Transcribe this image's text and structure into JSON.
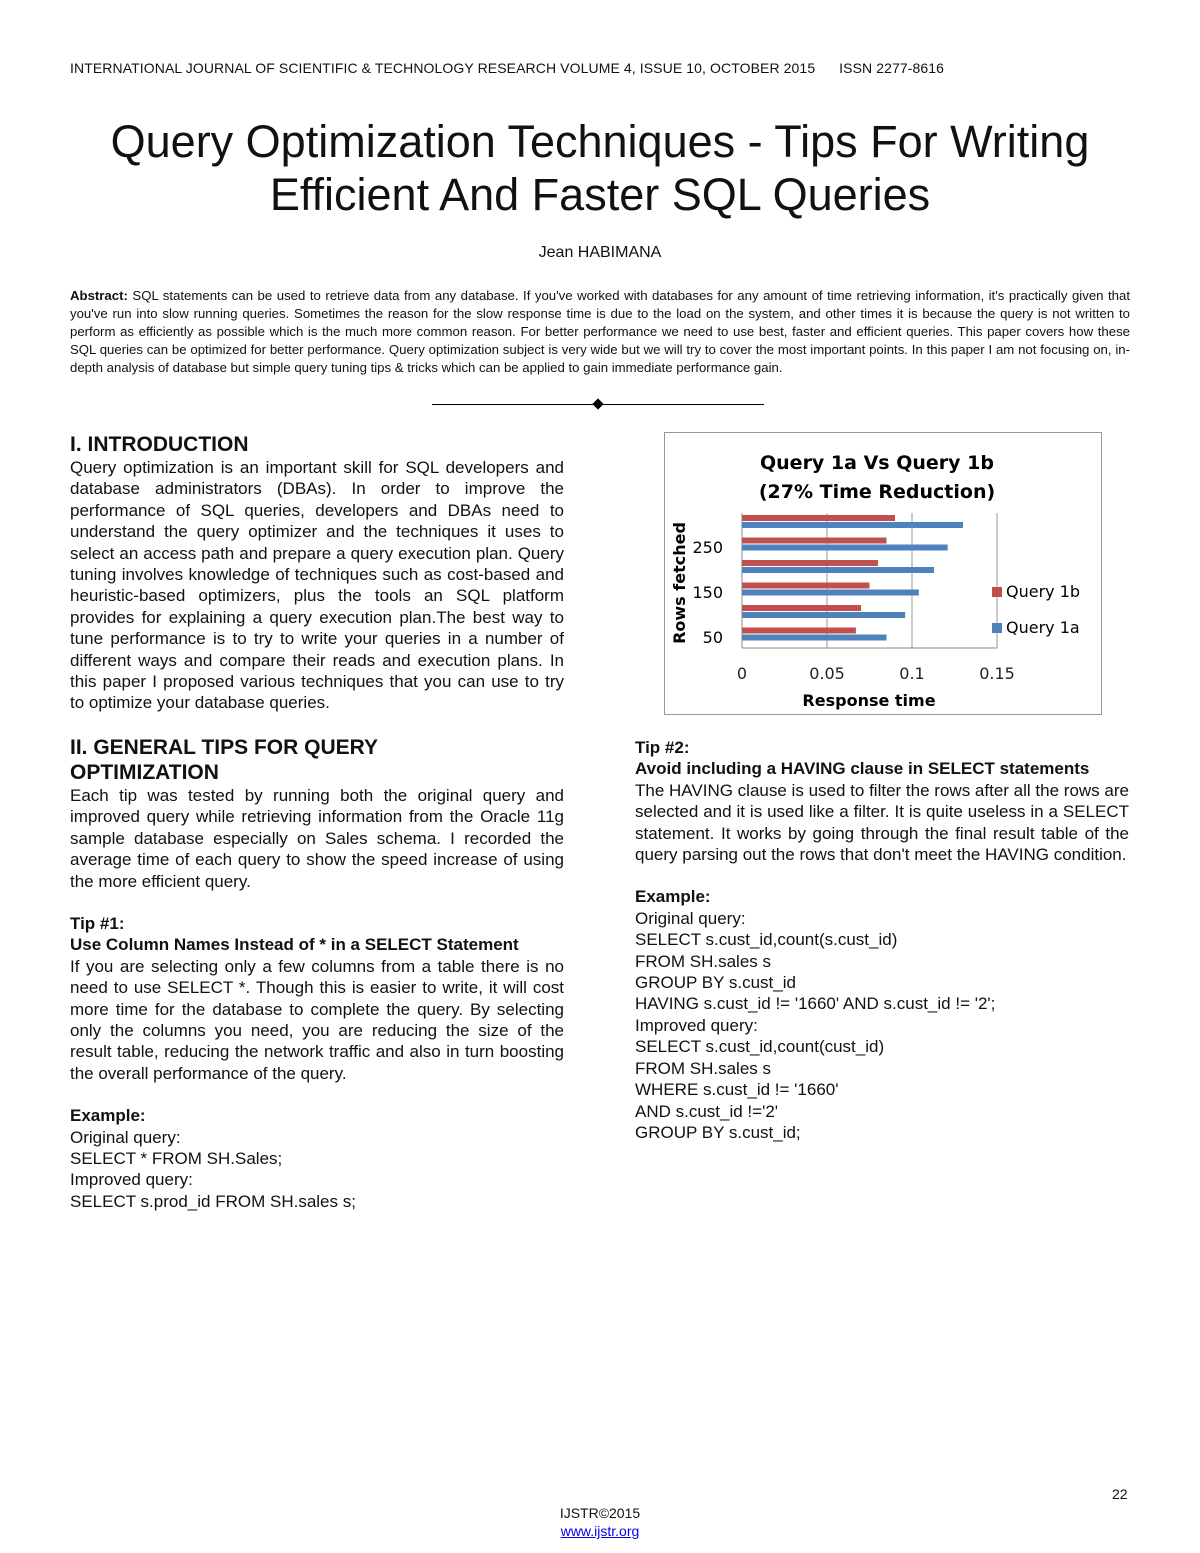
{
  "header": "INTERNATIONAL JOURNAL OF SCIENTIFIC & TECHNOLOGY RESEARCH VOLUME 4, ISSUE 10, OCTOBER 2015      ISSN 2277-8616",
  "title_line1": "Query Optimization Techniques - Tips For Writing",
  "title_line2": "Efficient And Faster SQL Queries",
  "author": "Jean HABIMANA",
  "abstract_label": "Abstract:",
  "abstract_text": " SQL statements can be used to retrieve data from any database. If you've worked with databases for any amount of time retrieving information, it's practically given that you've run into slow running queries. Sometimes the reason for the slow response time is due to the load on the system, and other times it is because the query is not written to perform as efficiently as possible which is the much more common reason. For better performance we need to use best, faster and efficient queries. This paper covers how these SQL queries can be optimized for better performance. Query optimization subject is very wide but we will try to cover the most important points. In this paper I am not focusing on, in- depth analysis of database but simple query tuning tips & tricks which can be applied to gain immediate performance gain.",
  "sec1_title": "I.  INTRODUCTION",
  "sec1_text": "Query optimization is an important skill for SQL developers and database administrators (DBAs). In order to improve the performance of SQL queries, developers and DBAs need to understand the query optimizer and the techniques it uses to select an access path and prepare a query execution plan. Query tuning involves knowledge of techniques such as cost-based and heuristic-based optimizers, plus the tools an SQL platform provides for explaining a query execution plan.The best way to tune performance is to try to write your queries in a number of different ways and compare their reads and execution plans. In this paper I proposed various techniques that you can use to try to optimize your database queries.",
  "sec2_title": "II.  GENERAL TIPS FOR QUERY OPTIMIZATION",
  "sec2_text": "Each tip was tested by running both the original query and improved query while retrieving information from the Oracle 11g sample database especially on Sales schema. I recorded the average time of each query to show the speed increase of using the more efficient query.",
  "tip1_label": "Tip #1:",
  "tip1_title": "Use Column Names Instead of * in a SELECT Statement",
  "tip1_text": "If you are selecting only a few columns from a table there is no need to use SELECT *. Though this is easier to write, it will cost more time for the database to complete the query. By selecting only the columns you need, you are reducing the size of the result table, reducing the network traffic and also in turn boosting the overall performance of the query.",
  "tip1_example": "Example:",
  "tip1_code": [
    "Original query:",
    "SELECT * FROM SH.Sales;",
    "Improved query:",
    "SELECT s.prod_id FROM SH.sales s;"
  ],
  "tip2_label": "Tip #2:",
  "tip2_title": "Avoid including a HAVING clause in SELECT statements",
  "tip2_text": "The HAVING clause is used to filter the rows after all the rows are selected and it is used like a filter. It is quite useless in a SELECT statement. It works by going through the final result table of the query parsing out the rows that don't meet the HAVING condition.",
  "tip2_example": "Example:",
  "tip2_code": [
    "Original query:",
    "SELECT s.cust_id,count(s.cust_id)",
    "FROM SH.sales s",
    "GROUP BY s.cust_id",
    "HAVING s.cust_id != '1660' AND s.cust_id != '2';",
    "Improved query:",
    "SELECT s.cust_id,count(cust_id)",
    "FROM SH.sales s",
    "WHERE s.cust_id != '1660'",
    "AND s.cust_id !='2'",
    "GROUP BY s.cust_id;"
  ],
  "page_number": "22",
  "footer_copyright": "IJSTR©2015",
  "footer_link": "www.ijstr.org",
  "chart_data": {
    "type": "bar",
    "orientation": "horizontal",
    "title": "Query 1a Vs Query 1b",
    "subtitle": "(27% Time Reduction)",
    "xlabel": "Response time",
    "ylabel": "Rows fetched",
    "categories": [
      50,
      100,
      150,
      200,
      250,
      300
    ],
    "ytick_labels": [
      "50",
      "150",
      "250"
    ],
    "xticks": [
      "0",
      "0.05",
      "0.1",
      "0.15"
    ],
    "xlim": [
      0,
      0.15
    ],
    "series": [
      {
        "name": "Query 1b",
        "color": "#c0504d",
        "values": [
          0.067,
          0.07,
          0.075,
          0.08,
          0.085,
          0.09
        ]
      },
      {
        "name": "Query 1a",
        "color": "#4f81bd",
        "values": [
          0.085,
          0.096,
          0.104,
          0.113,
          0.121,
          0.13
        ]
      }
    ],
    "legend": "right"
  }
}
